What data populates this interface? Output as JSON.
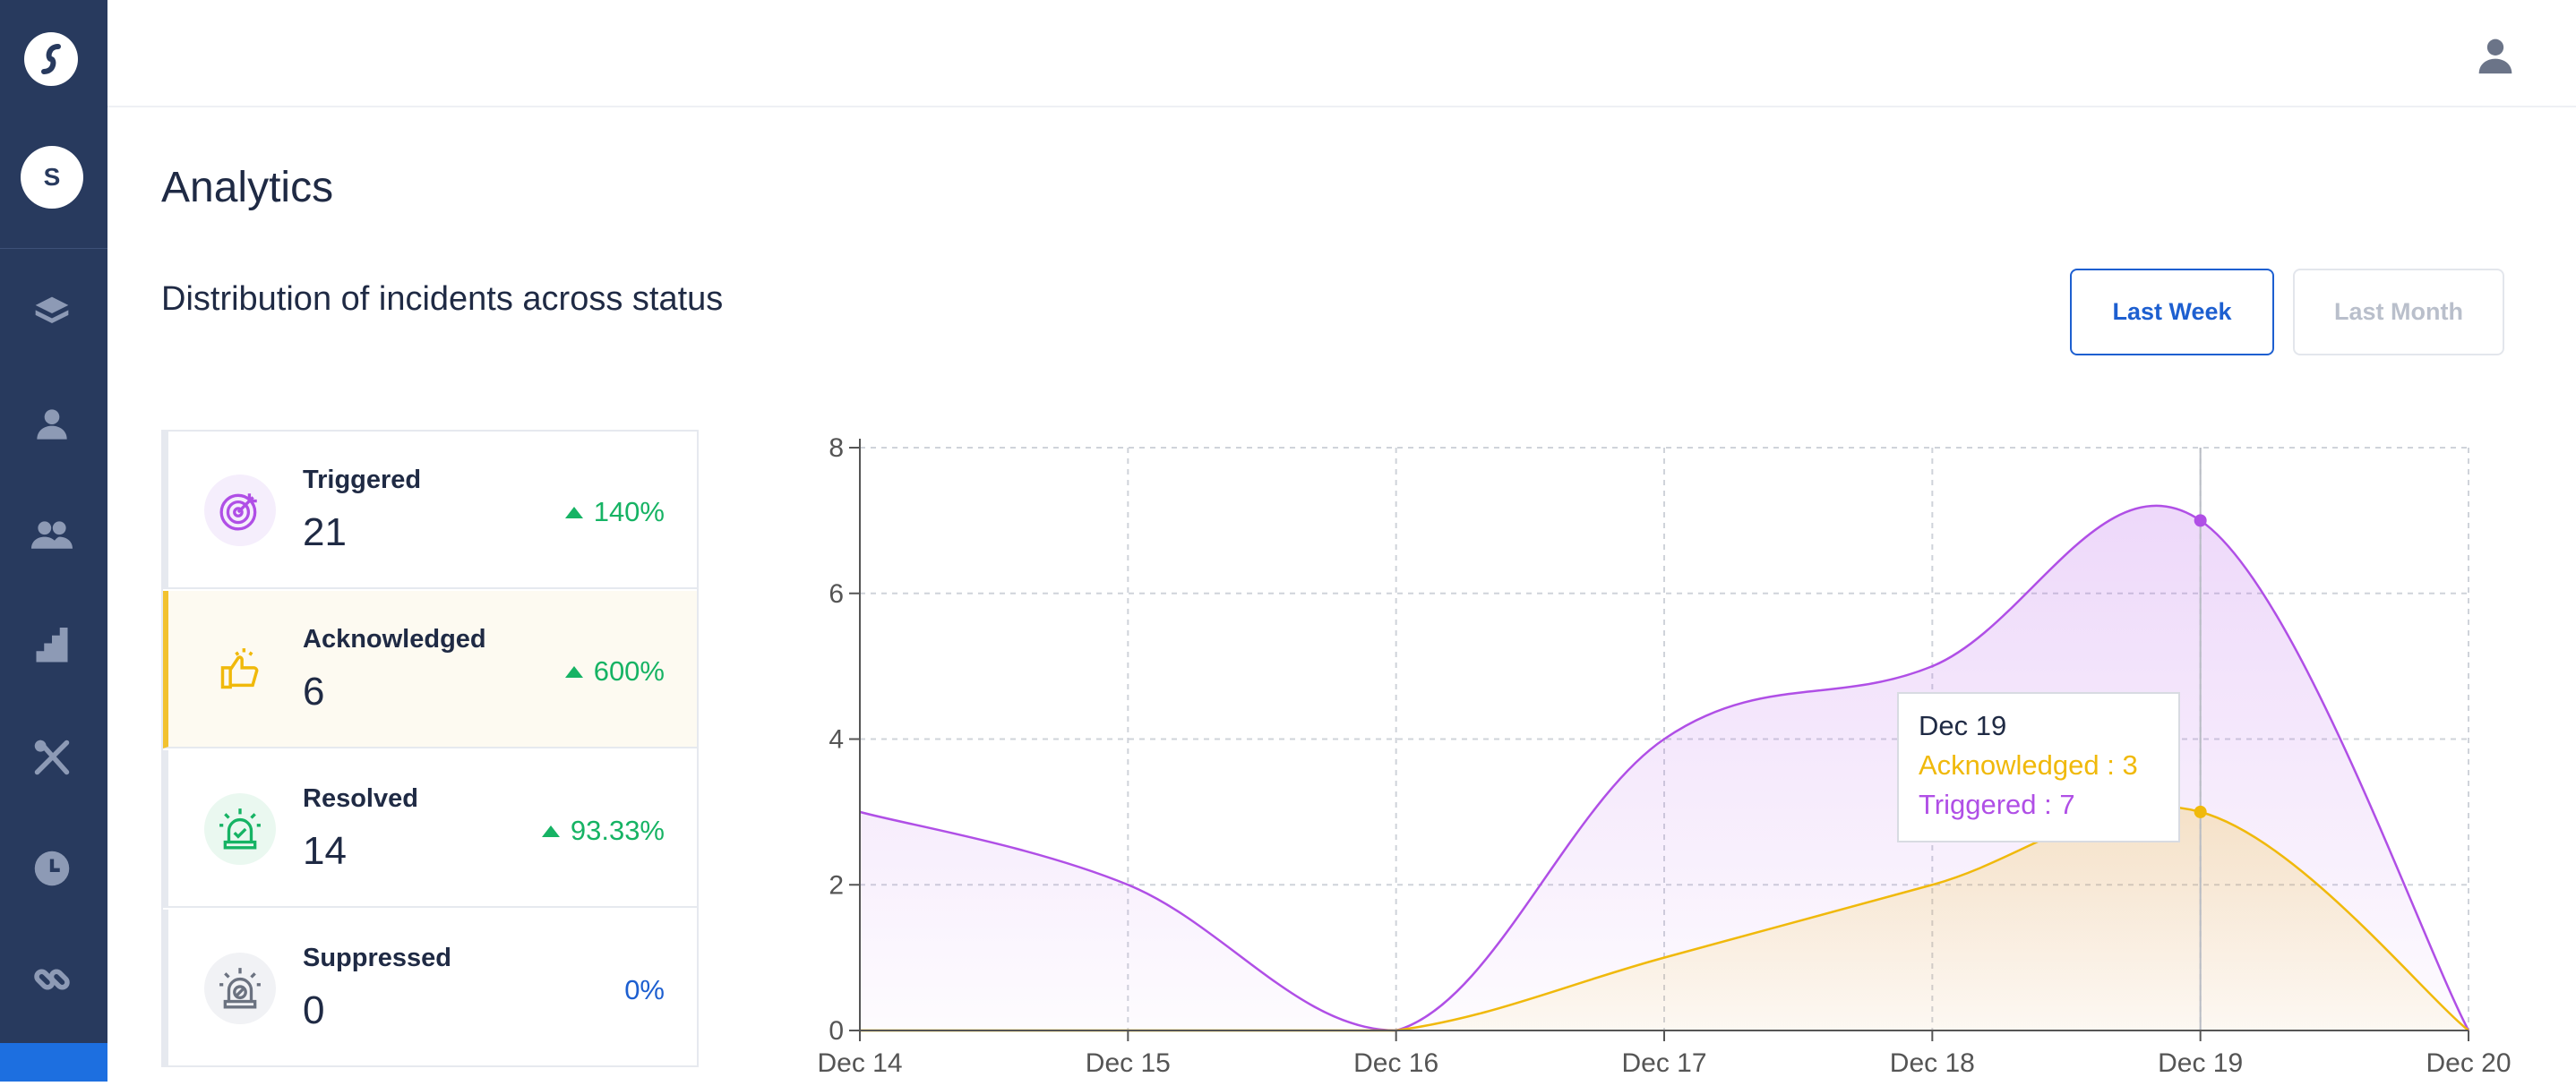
{
  "sidebar": {
    "org_initial": "S",
    "icons": [
      "logo-icon",
      "layers-icon",
      "user-icon",
      "team-icon",
      "stairs-icon",
      "tools-icon",
      "clock-icon",
      "link-icon"
    ]
  },
  "page": {
    "title": "Analytics"
  },
  "distribution": {
    "title": "Distribution of incidents across status",
    "range_buttons": {
      "week": "Last Week",
      "month": "Last Month",
      "selected": "week"
    },
    "statuses": [
      {
        "label": "Triggered",
        "count": "21",
        "delta": "140%",
        "trend": "up",
        "color": "#b04fe6",
        "icon": "target-icon"
      },
      {
        "label": "Acknowledged",
        "count": "6",
        "delta": "600%",
        "trend": "up",
        "color": "#f2c230",
        "icon": "thumbs-up-icon"
      },
      {
        "label": "Resolved",
        "count": "14",
        "delta": "93.33%",
        "trend": "up",
        "color": "#16b364",
        "icon": "alarm-icon"
      },
      {
        "label": "Suppressed",
        "count": "0",
        "delta": "0%",
        "trend": "none",
        "color": "#6b7280",
        "icon": "suppressed-alarm-icon"
      }
    ]
  },
  "chart_data": {
    "type": "area",
    "x": [
      "Dec 14",
      "Dec 15",
      "Dec 16",
      "Dec 17",
      "Dec 18",
      "Dec 19",
      "Dec 20"
    ],
    "series": [
      {
        "name": "Triggered",
        "values": [
          3,
          2,
          0,
          4,
          5,
          7,
          0
        ],
        "color": "#b04fe6"
      },
      {
        "name": "Acknowledged",
        "values": [
          0,
          0,
          0,
          1,
          2,
          3,
          0
        ],
        "color": "#f0b90b"
      }
    ],
    "yticks": [
      "0",
      "2",
      "4",
      "6",
      "8"
    ],
    "ylim": [
      0,
      8
    ],
    "grid": true,
    "tooltip": {
      "date": "Dec 19",
      "ack": "Acknowledged : 3",
      "trig": "Triggered : 7"
    }
  }
}
